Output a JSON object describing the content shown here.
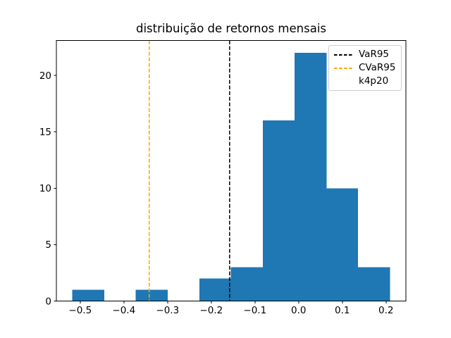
{
  "chart_data": {
    "type": "bar",
    "subtype": "histogram",
    "title": "distribuição de retornos mensais",
    "xlabel": "",
    "ylabel": "",
    "grid": false,
    "bar_color": "#1f77b4",
    "bin_edges": [
      -0.518,
      -0.445,
      -0.373,
      -0.3,
      -0.227,
      -0.155,
      -0.082,
      -0.009,
      0.064,
      0.136,
      0.209
    ],
    "counts": [
      1,
      0,
      1,
      0,
      2,
      3,
      16,
      22,
      10,
      3
    ],
    "xlim": [
      -0.5545,
      0.2455
    ],
    "ylim": [
      0,
      23.1
    ],
    "xticks": {
      "values": [
        -0.5,
        -0.4,
        -0.3,
        -0.2,
        -0.1,
        0.0,
        0.1,
        0.2
      ],
      "labels": [
        "−0.5",
        "−0.4",
        "−0.3",
        "−0.2",
        "−0.1",
        "0.0",
        "0.1",
        "0.2"
      ]
    },
    "yticks": {
      "values": [
        0,
        5,
        10,
        15,
        20
      ],
      "labels": [
        "0",
        "5",
        "10",
        "15",
        "20"
      ]
    },
    "vlines": [
      {
        "name": "VaR95",
        "x": -0.158,
        "color": "#000000",
        "style": "dashed"
      },
      {
        "name": "CVaR95",
        "x": -0.342,
        "color": "#ffa500",
        "style": "dashed"
      }
    ],
    "legend": {
      "position": "upper-right",
      "entries": [
        {
          "label": "VaR95",
          "handle": "dashed-line",
          "color": "#000000"
        },
        {
          "label": "CVaR95",
          "handle": "dashed-line",
          "color": "#ffa500"
        },
        {
          "label": "k4p20",
          "handle": "none",
          "color": null
        }
      ]
    }
  }
}
